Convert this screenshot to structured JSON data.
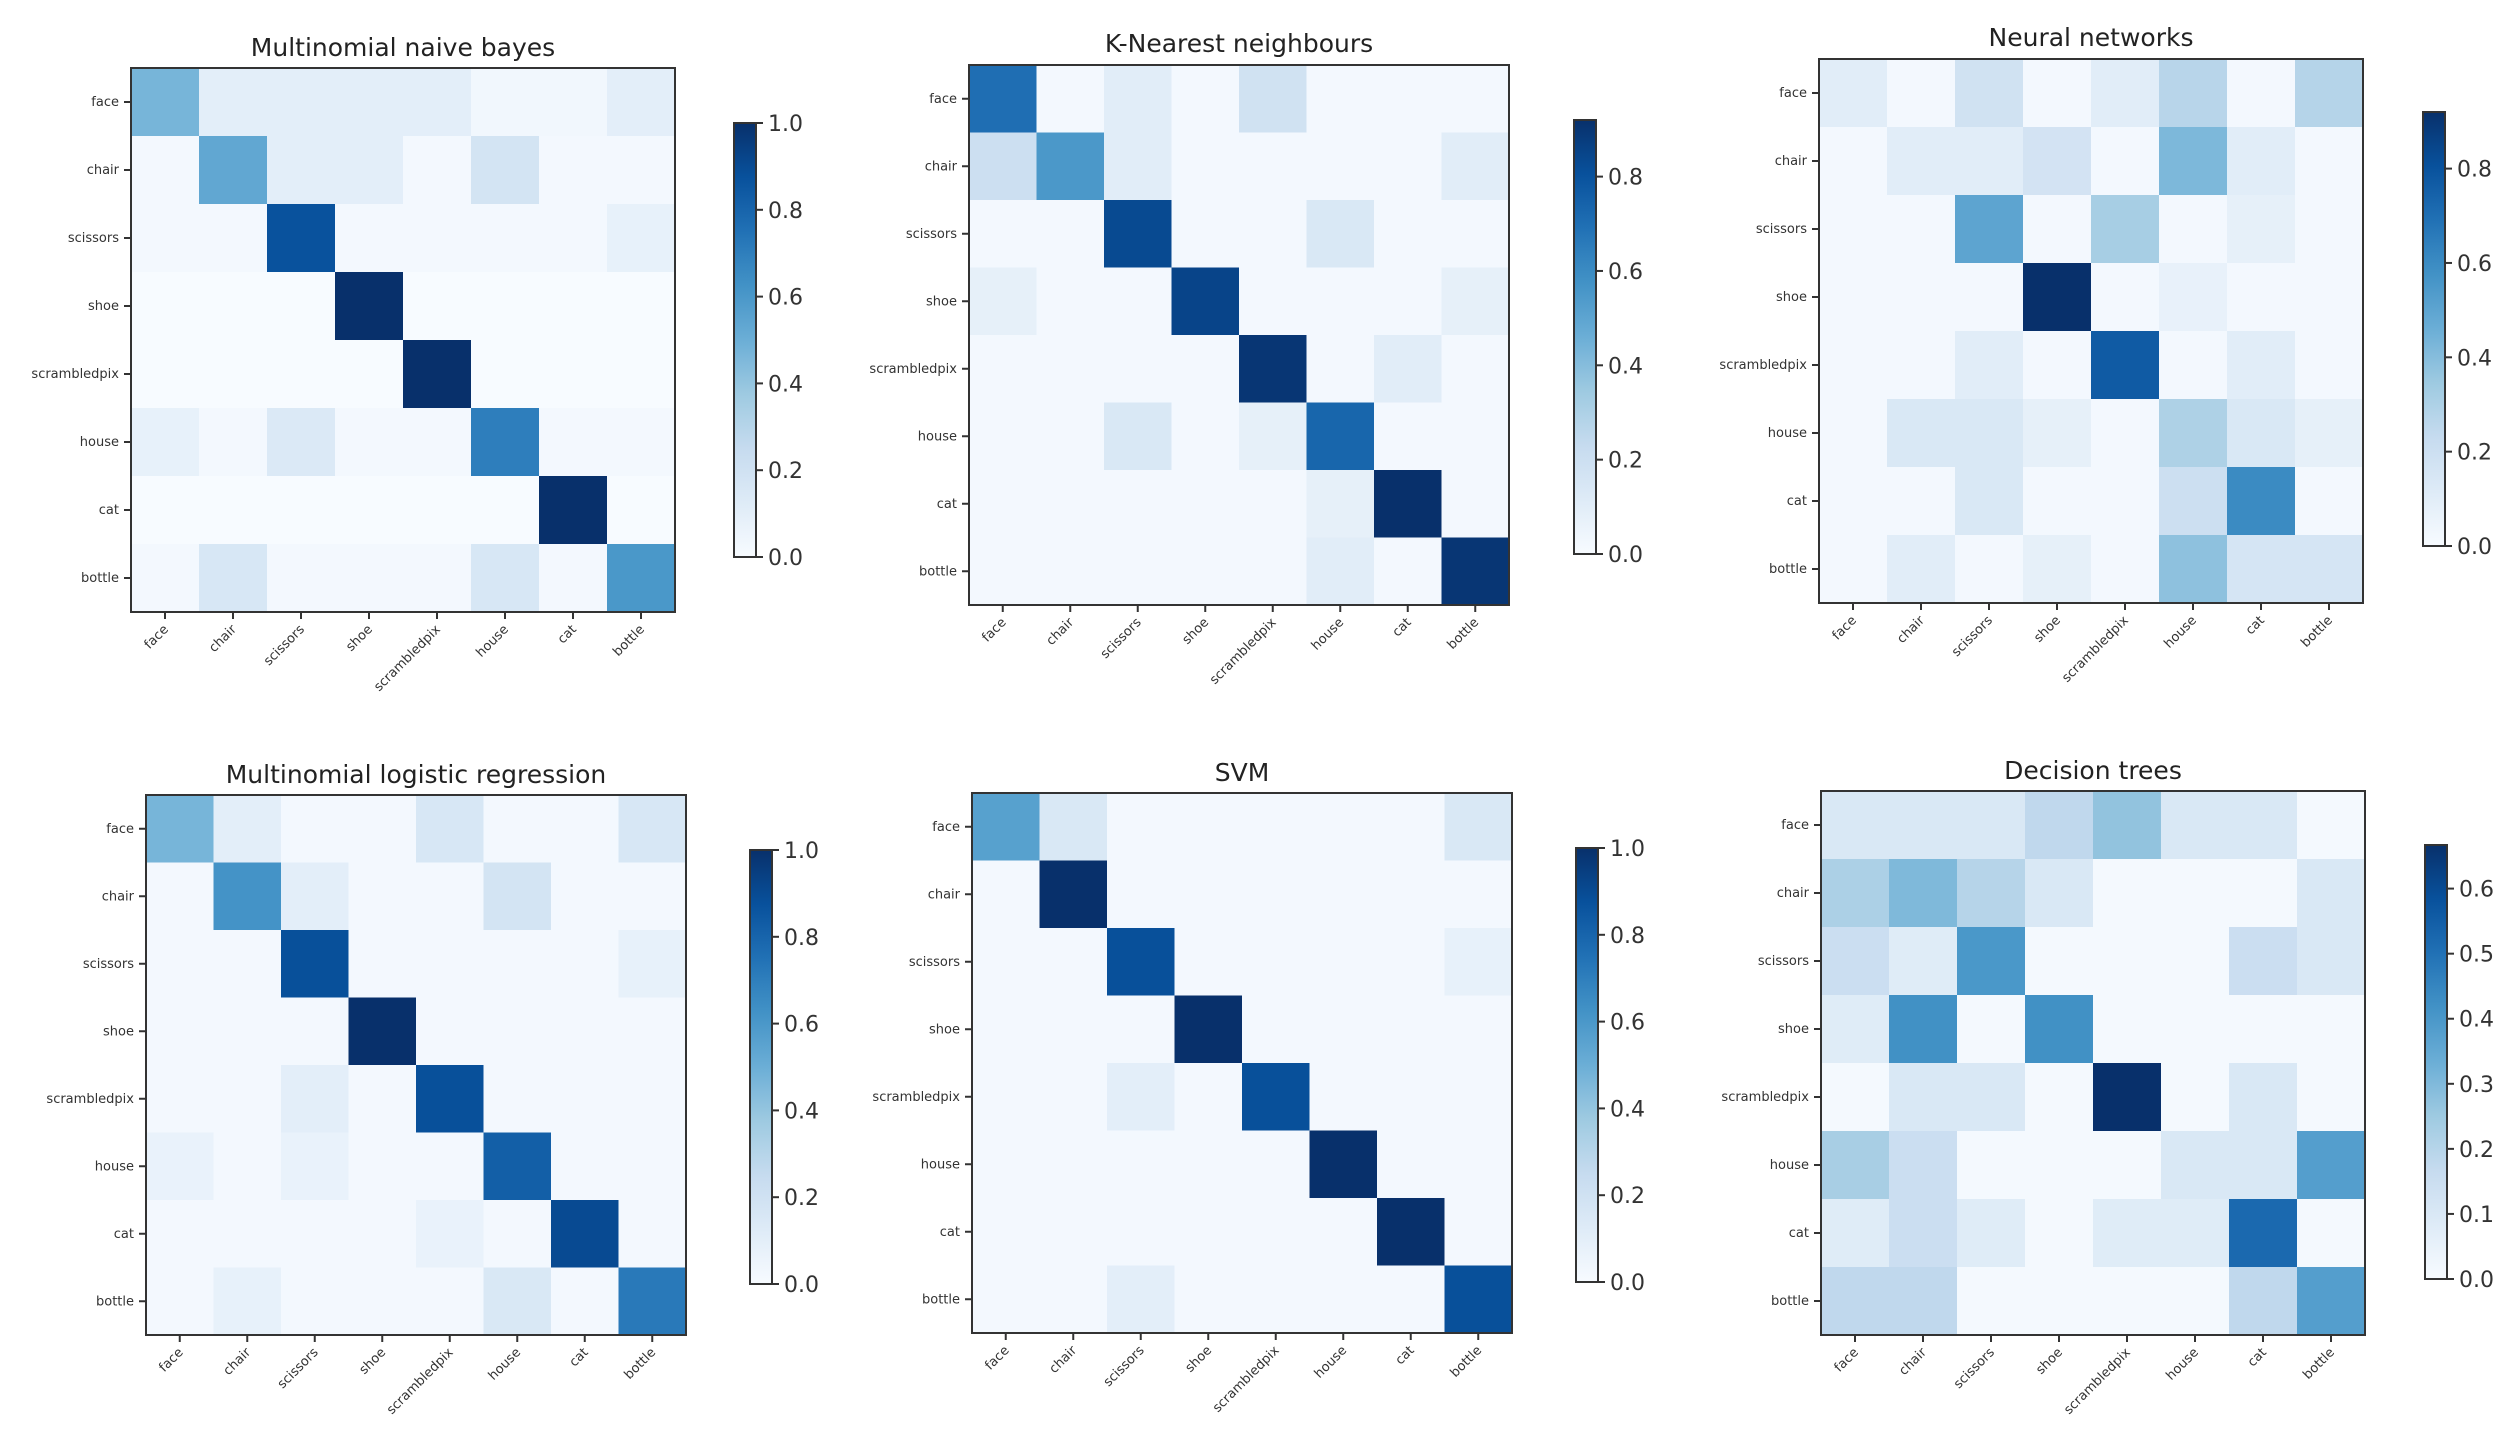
{
  "chart_data": [
    {
      "type": "heatmap",
      "title": "Multinomial naive bayes",
      "x_tick_labels": [
        "face",
        "chair",
        "scissors",
        "shoe",
        "scrambledpix",
        "house",
        "cat",
        "bottle"
      ],
      "y_tick_labels": [
        "face",
        "chair",
        "scissors",
        "shoe",
        "scrambledpix",
        "house",
        "cat",
        "bottle"
      ],
      "colormap": "Blues",
      "vmin": 0.0,
      "vmax": 1.0,
      "colorbar_ticks": [
        "0.0",
        "0.2",
        "0.4",
        "0.6",
        "0.8",
        "1.0"
      ],
      "values": [
        [
          0.47,
          0.1,
          0.1,
          0.1,
          0.1,
          0.03,
          0.03,
          0.1
        ],
        [
          0.02,
          0.53,
          0.1,
          0.1,
          0.02,
          0.18,
          0.02,
          0.02
        ],
        [
          0.02,
          0.02,
          0.87,
          0.02,
          0.02,
          0.02,
          0.02,
          0.08
        ],
        [
          0.0,
          0.0,
          0.0,
          1.0,
          0.0,
          0.0,
          0.0,
          0.0
        ],
        [
          0.0,
          0.0,
          0.0,
          0.0,
          1.0,
          0.0,
          0.0,
          0.0
        ],
        [
          0.08,
          0.02,
          0.14,
          0.02,
          0.02,
          0.7,
          0.02,
          0.02
        ],
        [
          0.0,
          0.0,
          0.0,
          0.0,
          0.0,
          0.0,
          1.0,
          0.0
        ],
        [
          0.02,
          0.16,
          0.02,
          0.02,
          0.02,
          0.16,
          0.02,
          0.6
        ]
      ]
    },
    {
      "type": "heatmap",
      "title": "K-Nearest neighbours",
      "x_tick_labels": [
        "face",
        "chair",
        "scissors",
        "shoe",
        "scrambledpix",
        "house",
        "cat",
        "bottle"
      ],
      "y_tick_labels": [
        "face",
        "chair",
        "scissors",
        "shoe",
        "scrambledpix",
        "house",
        "cat",
        "bottle"
      ],
      "colormap": "Blues",
      "vmin": 0.0,
      "vmax": 0.92,
      "colorbar_ticks": [
        "0.0",
        "0.2",
        "0.4",
        "0.6",
        "0.8"
      ],
      "values": [
        [
          0.7,
          0.02,
          0.1,
          0.02,
          0.18,
          0.02,
          0.02,
          0.02
        ],
        [
          0.2,
          0.55,
          0.1,
          0.02,
          0.02,
          0.02,
          0.02,
          0.1
        ],
        [
          0.02,
          0.02,
          0.83,
          0.02,
          0.02,
          0.14,
          0.02,
          0.02
        ],
        [
          0.08,
          0.02,
          0.02,
          0.85,
          0.02,
          0.02,
          0.02,
          0.08
        ],
        [
          0.02,
          0.02,
          0.02,
          0.02,
          0.9,
          0.02,
          0.1,
          0.02
        ],
        [
          0.02,
          0.02,
          0.14,
          0.02,
          0.08,
          0.73,
          0.02,
          0.02
        ],
        [
          0.02,
          0.02,
          0.02,
          0.02,
          0.02,
          0.08,
          0.92,
          0.02
        ],
        [
          0.02,
          0.02,
          0.02,
          0.02,
          0.02,
          0.1,
          0.02,
          0.9
        ]
      ]
    },
    {
      "type": "heatmap",
      "title": "Neural networks",
      "x_tick_labels": [
        "face",
        "chair",
        "scissors",
        "shoe",
        "scrambledpix",
        "house",
        "cat",
        "bottle"
      ],
      "y_tick_labels": [
        "face",
        "chair",
        "scissors",
        "shoe",
        "scrambledpix",
        "house",
        "cat",
        "bottle"
      ],
      "colormap": "Blues",
      "vmin": 0.0,
      "vmax": 0.92,
      "colorbar_ticks": [
        "0.0",
        "0.2",
        "0.4",
        "0.6",
        "0.8"
      ],
      "values": [
        [
          0.1,
          0.02,
          0.18,
          0.02,
          0.1,
          0.27,
          0.02,
          0.28
        ],
        [
          0.02,
          0.1,
          0.1,
          0.17,
          0.02,
          0.42,
          0.1,
          0.02
        ],
        [
          0.02,
          0.02,
          0.5,
          0.02,
          0.32,
          0.02,
          0.08,
          0.02
        ],
        [
          0.02,
          0.02,
          0.02,
          0.92,
          0.02,
          0.07,
          0.02,
          0.02
        ],
        [
          0.02,
          0.02,
          0.1,
          0.02,
          0.77,
          0.02,
          0.1,
          0.02
        ],
        [
          0.02,
          0.14,
          0.14,
          0.08,
          0.02,
          0.3,
          0.14,
          0.08
        ],
        [
          0.02,
          0.02,
          0.14,
          0.02,
          0.02,
          0.2,
          0.6,
          0.02
        ],
        [
          0.02,
          0.1,
          0.02,
          0.08,
          0.02,
          0.38,
          0.16,
          0.16
        ]
      ]
    },
    {
      "type": "heatmap",
      "title": "Multinomial logistic regression",
      "x_tick_labels": [
        "face",
        "chair",
        "scissors",
        "shoe",
        "scrambledpix",
        "house",
        "cat",
        "bottle"
      ],
      "y_tick_labels": [
        "face",
        "chair",
        "scissors",
        "shoe",
        "scrambledpix",
        "house",
        "cat",
        "bottle"
      ],
      "colormap": "Blues",
      "vmin": 0.0,
      "vmax": 1.0,
      "colorbar_ticks": [
        "0.0",
        "0.2",
        "0.4",
        "0.6",
        "0.8",
        "1.0"
      ],
      "values": [
        [
          0.47,
          0.1,
          0.02,
          0.02,
          0.16,
          0.02,
          0.02,
          0.16
        ],
        [
          0.02,
          0.62,
          0.1,
          0.02,
          0.02,
          0.18,
          0.02,
          0.02
        ],
        [
          0.02,
          0.02,
          0.88,
          0.02,
          0.02,
          0.02,
          0.02,
          0.08
        ],
        [
          0.02,
          0.02,
          0.02,
          1.0,
          0.02,
          0.02,
          0.02,
          0.02
        ],
        [
          0.02,
          0.02,
          0.1,
          0.02,
          0.88,
          0.02,
          0.02,
          0.02
        ],
        [
          0.07,
          0.02,
          0.07,
          0.02,
          0.02,
          0.82,
          0.02,
          0.02
        ],
        [
          0.02,
          0.02,
          0.02,
          0.02,
          0.07,
          0.02,
          0.9,
          0.02
        ],
        [
          0.02,
          0.08,
          0.02,
          0.02,
          0.02,
          0.15,
          0.02,
          0.72
        ]
      ]
    },
    {
      "type": "heatmap",
      "title": "SVM",
      "x_tick_labels": [
        "face",
        "chair",
        "scissors",
        "shoe",
        "scrambledpix",
        "house",
        "cat",
        "bottle"
      ],
      "y_tick_labels": [
        "face",
        "chair",
        "scissors",
        "shoe",
        "scrambledpix",
        "house",
        "cat",
        "bottle"
      ],
      "colormap": "Blues",
      "vmin": 0.0,
      "vmax": 1.0,
      "colorbar_ticks": [
        "0.0",
        "0.2",
        "0.4",
        "0.6",
        "0.8",
        "1.0"
      ],
      "values": [
        [
          0.56,
          0.15,
          0.02,
          0.02,
          0.02,
          0.02,
          0.02,
          0.15
        ],
        [
          0.02,
          1.0,
          0.02,
          0.02,
          0.02,
          0.02,
          0.02,
          0.02
        ],
        [
          0.02,
          0.02,
          0.88,
          0.02,
          0.02,
          0.02,
          0.02,
          0.08
        ],
        [
          0.02,
          0.02,
          0.02,
          1.0,
          0.02,
          0.02,
          0.02,
          0.02
        ],
        [
          0.02,
          0.02,
          0.1,
          0.02,
          0.88,
          0.02,
          0.02,
          0.02
        ],
        [
          0.02,
          0.02,
          0.02,
          0.02,
          0.02,
          1.0,
          0.02,
          0.02
        ],
        [
          0.02,
          0.02,
          0.02,
          0.02,
          0.02,
          0.02,
          1.0,
          0.02
        ],
        [
          0.02,
          0.02,
          0.1,
          0.02,
          0.02,
          0.02,
          0.02,
          0.88
        ]
      ]
    },
    {
      "type": "heatmap",
      "title": "Decision trees",
      "x_tick_labels": [
        "face",
        "chair",
        "scissors",
        "shoe",
        "scrambledpix",
        "house",
        "cat",
        "bottle"
      ],
      "y_tick_labels": [
        "face",
        "chair",
        "scissors",
        "shoe",
        "scrambledpix",
        "house",
        "cat",
        "bottle"
      ],
      "colormap": "Blues",
      "vmin": 0.0,
      "vmax": 0.667,
      "colorbar_ticks": [
        "0.0",
        "0.1",
        "0.2",
        "0.3",
        "0.4",
        "0.5",
        "0.6"
      ],
      "values": [
        [
          0.1,
          0.1,
          0.1,
          0.18,
          0.27,
          0.1,
          0.1,
          0.01
        ],
        [
          0.22,
          0.3,
          0.2,
          0.1,
          0.01,
          0.01,
          0.01,
          0.1
        ],
        [
          0.15,
          0.08,
          0.4,
          0.01,
          0.01,
          0.01,
          0.15,
          0.1
        ],
        [
          0.08,
          0.42,
          0.01,
          0.42,
          0.01,
          0.01,
          0.01,
          0.01
        ],
        [
          0.01,
          0.1,
          0.1,
          0.01,
          0.667,
          0.01,
          0.1,
          0.01
        ],
        [
          0.23,
          0.15,
          0.01,
          0.01,
          0.01,
          0.1,
          0.1,
          0.38
        ],
        [
          0.08,
          0.15,
          0.08,
          0.01,
          0.08,
          0.08,
          0.52,
          0.01
        ],
        [
          0.18,
          0.18,
          0.01,
          0.01,
          0.01,
          0.01,
          0.18,
          0.38
        ]
      ]
    }
  ]
}
